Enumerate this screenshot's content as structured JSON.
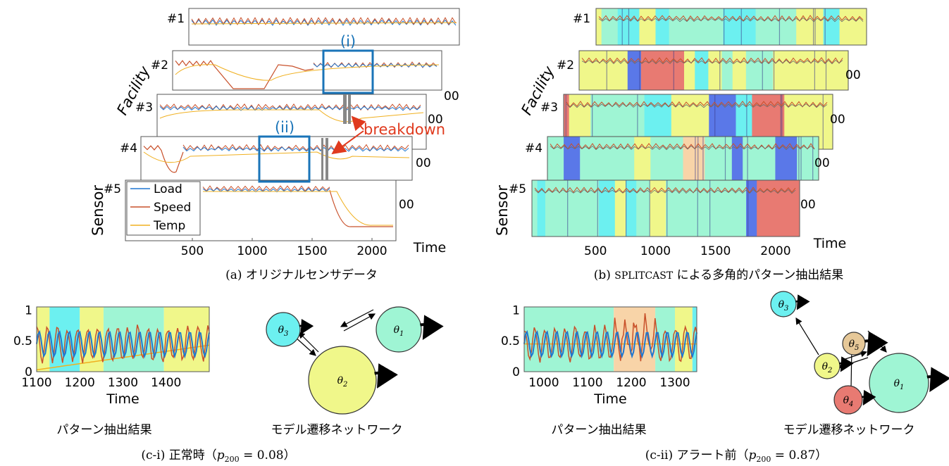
{
  "palette": {
    "load": "#1f77d0",
    "speed": "#c8502a",
    "temp": "#f0b020",
    "blue_box": "#1a74b8",
    "red": "#e03a1e",
    "regime_1": "#9ff5d4",
    "regime_2": "#f0f78a",
    "regime_3": "#6cf0f0",
    "regime_4": "#e87a72",
    "regime_5": "#e6c898",
    "regime_dark": "#5a78e8",
    "regime_peach": "#f8d4a8"
  },
  "panel_a": {
    "caption": "(a) オリジナルセンサデータ",
    "ylabel_top": "Facility",
    "ylabel_bottom": "Sensor",
    "xlabel": "Time",
    "facility_labels": [
      "#1",
      "#2",
      "#3",
      "#4",
      "#5"
    ],
    "partial_tick": "00",
    "box_labels": [
      "(i)",
      "(ii)"
    ],
    "annotation": "breakdown",
    "legend": [
      "Load",
      "Speed",
      "Temp"
    ]
  },
  "panel_b": {
    "caption_prefix": "(b) ",
    "caption_name": "SPLITCAST",
    "caption_suffix": " による多角的パターン抽出結果",
    "ylabel_top": "Facility",
    "ylabel_bottom": "Sensor",
    "xlabel": "Time",
    "facility_labels": [
      "#1",
      "#2",
      "#3",
      "#4",
      "#5"
    ],
    "partial_tick": "00"
  },
  "panel_ci": {
    "caption": "(c-i) 正常時（p200 = 0.08）",
    "caption_parts": [
      "(c-i) 正常時（",
      "p",
      "200",
      " = 0.08）"
    ],
    "left_title": "パターン抽出結果",
    "right_title": "モデル遷移ネットワーク",
    "xlabel": "Time",
    "nodes": [
      "θ3",
      "θ1",
      "θ2"
    ]
  },
  "panel_cii": {
    "caption_parts": [
      "(c-ii) アラート前（",
      "p",
      "200",
      " = 0.87）"
    ],
    "left_title": "パターン抽出結果",
    "right_title": "モデル遷移ネットワーク",
    "xlabel": "Time",
    "nodes": [
      "θ3",
      "θ5",
      "θ2",
      "θ1",
      "θ4"
    ]
  },
  "chart_data": [
    {
      "type": "line",
      "id": "a",
      "x_ticks": [
        500,
        1000,
        1500,
        2000
      ],
      "xlim": [
        0,
        2200
      ],
      "xlabel": "Time",
      "series": [
        {
          "name": "Load"
        },
        {
          "name": "Speed"
        },
        {
          "name": "Temp"
        }
      ],
      "annotations": [
        "(i)",
        "(ii)",
        "breakdown"
      ]
    },
    {
      "type": "line",
      "id": "b",
      "x_ticks": [
        500,
        1000,
        1500,
        2000
      ],
      "xlim": [
        0,
        2200
      ],
      "xlabel": "Time"
    },
    {
      "type": "line",
      "id": "c-i",
      "x_ticks": [
        1100,
        1200,
        1300,
        1400
      ],
      "xlim": [
        1100,
        1500
      ],
      "y_ticks": [
        0,
        0.5,
        1
      ],
      "ylim": [
        0,
        1.05
      ],
      "xlabel": "Time",
      "segments": [
        {
          "from": 1100,
          "to": 1130,
          "regime": "regime_2"
        },
        {
          "from": 1130,
          "to": 1200,
          "regime": "regime_3"
        },
        {
          "from": 1200,
          "to": 1255,
          "regime": "regime_2"
        },
        {
          "from": 1255,
          "to": 1395,
          "regime": "regime_1"
        },
        {
          "from": 1395,
          "to": 1500,
          "regime": "regime_2"
        }
      ]
    },
    {
      "type": "line",
      "id": "c-ii",
      "x_ticks": [
        1000,
        1100,
        1200,
        1300
      ],
      "xlim": [
        955,
        1350
      ],
      "y_ticks": [
        0,
        0.5,
        1
      ],
      "ylim": [
        0,
        1.05
      ],
      "xlabel": "Time",
      "segments": [
        {
          "from": 955,
          "to": 1160,
          "regime": "regime_1"
        },
        {
          "from": 1160,
          "to": 1255,
          "regime": "regime_peach"
        },
        {
          "from": 1255,
          "to": 1300,
          "regime": "regime_1"
        },
        {
          "from": 1300,
          "to": 1340,
          "regime": "regime_2"
        },
        {
          "from": 1340,
          "to": 1350,
          "regime": "regime_3"
        }
      ]
    }
  ]
}
